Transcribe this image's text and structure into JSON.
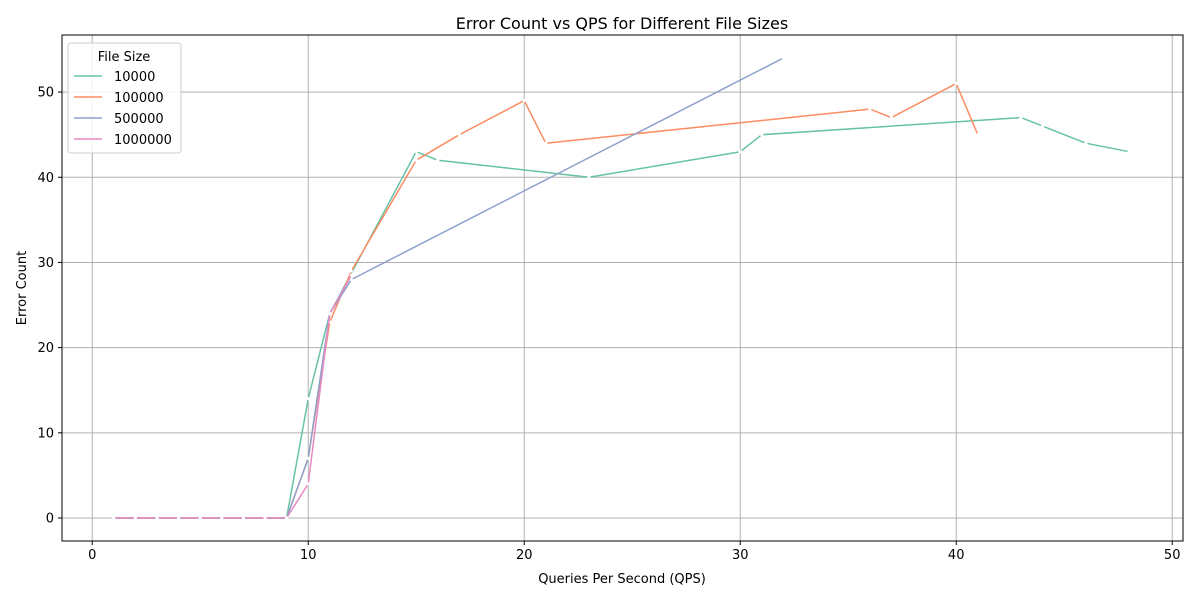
{
  "chart_data": {
    "type": "line",
    "title": "Error Count vs QPS for Different File Sizes",
    "xlabel": "Queries Per Second (QPS)",
    "ylabel": "Error Count",
    "xlim": [
      -1.4,
      50.5
    ],
    "ylim": [
      -2.7,
      56.7
    ],
    "xticks": [
      0,
      10,
      20,
      30,
      40,
      50
    ],
    "yticks": [
      0,
      10,
      20,
      30,
      40,
      50
    ],
    "grid": true,
    "legend": {
      "title": "File Size",
      "placement": "top-left"
    },
    "series": [
      {
        "name": "10000",
        "color": "#66c2a5",
        "points": [
          [
            1,
            0
          ],
          [
            2,
            0
          ],
          [
            3,
            0
          ],
          [
            4,
            0
          ],
          [
            5,
            0
          ],
          [
            6,
            0
          ],
          [
            7,
            0
          ],
          [
            8,
            0
          ],
          [
            9,
            0
          ],
          [
            10,
            14
          ],
          [
            11,
            24
          ],
          [
            15,
            43
          ],
          [
            16,
            42
          ],
          [
            23,
            40
          ],
          [
            30,
            43
          ],
          [
            31,
            45
          ],
          [
            43,
            47
          ],
          [
            44,
            46
          ],
          [
            46,
            44
          ],
          [
            48,
            43
          ]
        ]
      },
      {
        "name": "100000",
        "color": "#fc8d62",
        "points": [
          [
            1,
            0
          ],
          [
            2,
            0
          ],
          [
            3,
            0
          ],
          [
            4,
            0
          ],
          [
            5,
            0
          ],
          [
            6,
            0
          ],
          [
            7,
            0
          ],
          [
            8,
            0
          ],
          [
            9,
            0
          ],
          [
            10,
            7
          ],
          [
            11,
            23
          ],
          [
            12,
            29
          ],
          [
            15,
            42
          ],
          [
            17,
            45
          ],
          [
            20,
            49
          ],
          [
            21,
            44
          ],
          [
            36,
            48
          ],
          [
            37,
            47
          ],
          [
            40,
            51
          ],
          [
            41,
            45
          ]
        ]
      },
      {
        "name": "500000",
        "color": "#8da0cb",
        "points": [
          [
            1,
            0
          ],
          [
            2,
            0
          ],
          [
            3,
            0
          ],
          [
            4,
            0
          ],
          [
            5,
            0
          ],
          [
            6,
            0
          ],
          [
            7,
            0
          ],
          [
            8,
            0
          ],
          [
            9,
            0
          ],
          [
            10,
            7
          ],
          [
            11,
            24
          ],
          [
            12,
            28
          ],
          [
            32,
            54
          ]
        ]
      },
      {
        "name": "1000000",
        "color": "#e78ac3",
        "points": [
          [
            1,
            0
          ],
          [
            2,
            0
          ],
          [
            3,
            0
          ],
          [
            4,
            0
          ],
          [
            5,
            0
          ],
          [
            6,
            0
          ],
          [
            7,
            0
          ],
          [
            8,
            0
          ],
          [
            9,
            0
          ],
          [
            10,
            4
          ],
          [
            11,
            24
          ],
          [
            12,
            28.5
          ]
        ]
      }
    ]
  }
}
